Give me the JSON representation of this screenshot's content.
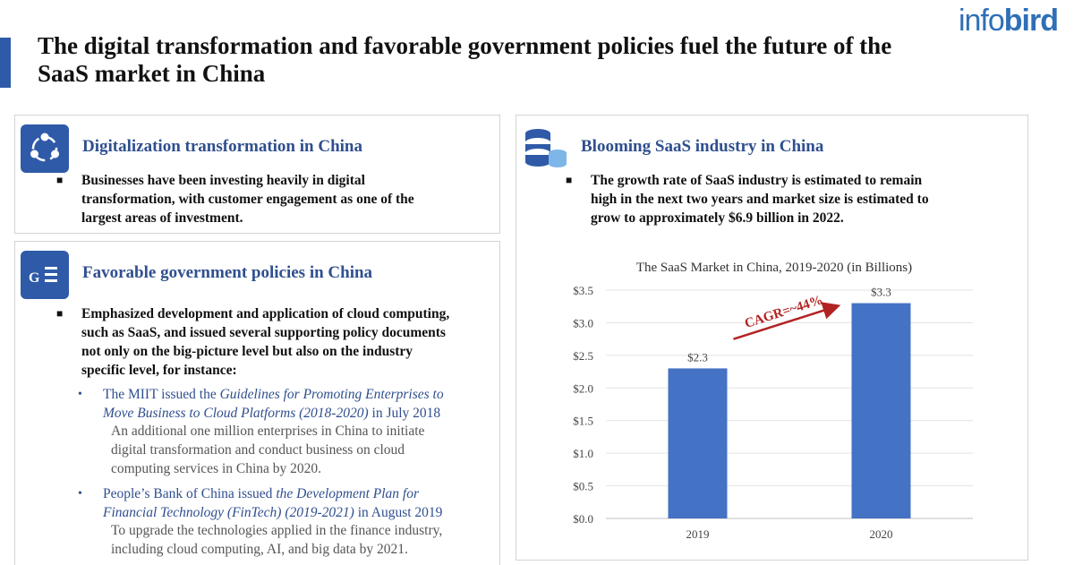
{
  "header": {
    "title_line1": "The digital transformation and favorable government policies fuel the future of the",
    "title_line2": "SaaS market in China",
    "logo_part1": "info",
    "logo_part2": "bird"
  },
  "digitalization": {
    "title": "Digitalization transformation in China",
    "icon": "network-icon",
    "bullet_line1": "Businesses have been investing heavily in digital",
    "bullet_line2": "transformation, with customer engagement as one of the",
    "bullet_line3": "largest areas of investment."
  },
  "government": {
    "title": "Favorable government policies in China",
    "icon": "government-document-icon",
    "icon_letter": "G",
    "bullet_line1": "Emphasized development and application of cloud computing,",
    "bullet_line2": "such as SaaS, and issued several supporting policy documents",
    "bullet_line3": "not only on the big-picture level but also on the industry",
    "bullet_line4": "specific level, for instance:",
    "items": [
      {
        "line1_prefix": "The MIIT issued the ",
        "line1_italic": "Guidelines for Promoting Enterprises to",
        "line2_italic": "Move Business to Cloud Platforms (2018-2020)",
        "line2_suffix": " in July 2018",
        "note_line1": "An additional one million enterprises in China to initiate",
        "note_line2": "digital transformation and conduct business on cloud",
        "note_line3": "computing services in China by 2020."
      },
      {
        "line1_prefix": "People’s Bank of China issued ",
        "line1_italic": "the Development Plan for",
        "line2_italic": "Financial Technology (FinTech) (2019-2021)",
        "line2_suffix": " in August 2019",
        "note_line1": "To upgrade the technologies applied in the finance industry,",
        "note_line2": "including cloud computing, AI, and big data by 2021."
      }
    ]
  },
  "saas": {
    "title": "Blooming SaaS industry in China",
    "icon": "database-icon",
    "bullet_line1": "The growth rate of SaaS industry is estimated to remain",
    "bullet_line2": "high in the next two years and market size is estimated to",
    "bullet_line3": "grow to approximately $6.9 billion in 2022."
  },
  "colors": {
    "accent": "#2f5aa8",
    "heading": "#2f4f8f",
    "bar": "#4472c4",
    "arrow": "#b22222",
    "logo": "#2f6fb6"
  },
  "chart_data": {
    "type": "bar",
    "title": "The SaaS Market in China, 2019-2020 (in Billions)",
    "categories": [
      "2019",
      "2020"
    ],
    "values": [
      2.3,
      3.3
    ],
    "data_labels": [
      "$2.3",
      "$3.3"
    ],
    "ylim": [
      0,
      3.5
    ],
    "yticks": [
      "$0.0",
      "$0.5",
      "$1.0",
      "$1.5",
      "$2.0",
      "$2.5",
      "$3.0",
      "$3.5"
    ],
    "grid": true,
    "annotation": "CAGR=~44%"
  }
}
